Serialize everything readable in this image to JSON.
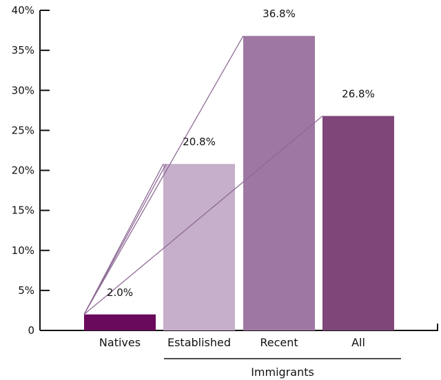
{
  "chart_data": {
    "type": "bar",
    "categories": [
      "Natives",
      "Established",
      "Recent",
      "All"
    ],
    "values": [
      2.0,
      20.8,
      36.8,
      26.8
    ],
    "value_labels": [
      "2.0%",
      "20.8%",
      "36.8%",
      "26.8%"
    ],
    "bar_colors": [
      "#6a0a5d",
      "#c6afca",
      "#9f77a3",
      "#7f4679"
    ],
    "connector_color": "#8e6a95",
    "ylim": [
      0,
      40
    ],
    "yticks": [
      0,
      5,
      10,
      15,
      20,
      25,
      30,
      35,
      40
    ],
    "ytick_labels": [
      "0",
      "5%",
      "10%",
      "15%",
      "20%",
      "25%",
      "30%",
      "35%",
      "40%"
    ],
    "group_label": "Immigrants",
    "group_categories": [
      "Established",
      "Recent",
      "All"
    ],
    "grid": false,
    "legend": "none",
    "title": "",
    "xlabel": "",
    "ylabel": ""
  }
}
